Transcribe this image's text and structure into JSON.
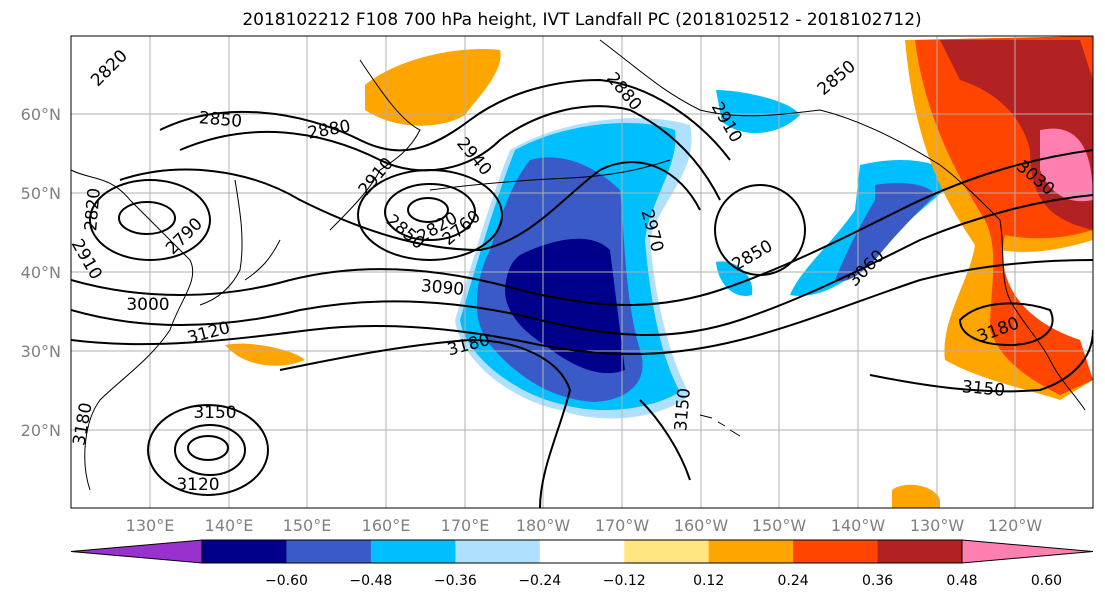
{
  "title": "2018102212 F108 700 hPa height, IVT Landfall PC (2018102512 - 2018102712)",
  "lat_ticks": [
    "60°N",
    "50°N",
    "40°N",
    "30°N",
    "20°N"
  ],
  "lon_ticks": [
    "130°E",
    "140°E",
    "150°E",
    "160°E",
    "170°E",
    "180°W",
    "170°W",
    "160°W",
    "150°W",
    "140°W",
    "130°W",
    "120°W"
  ],
  "contour_labels": [
    "2820",
    "2850",
    "2880",
    "2910",
    "2940",
    "2880",
    "2910",
    "2850",
    "3030",
    "2820",
    "2790",
    "2910",
    "3000",
    "3120",
    "2850",
    "2820",
    "2760",
    "3090",
    "2970",
    "2850",
    "3060",
    "3180",
    "3180",
    "3150",
    "3150",
    "3150",
    "3120",
    "3180"
  ],
  "colorbar": {
    "colors": [
      "#9932cc",
      "#00008b",
      "#3a5bc7",
      "#00bfff",
      "#b0e0ff",
      "#ffffff",
      "#ffe680",
      "#ffa500",
      "#ff4500",
      "#b22222",
      "#ff80b0"
    ],
    "tick_labels": [
      "−0.60",
      "−0.48",
      "−0.36",
      "−0.24",
      "−0.12",
      "0.12",
      "0.24",
      "0.36",
      "0.48",
      "0.60"
    ]
  }
}
